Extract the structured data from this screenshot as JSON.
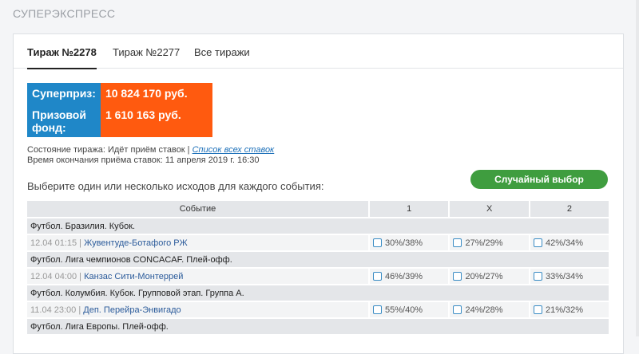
{
  "title": "СУПЕРЭКСПРЕСС",
  "tabs": [
    {
      "label": "Тираж №2278",
      "active": true
    },
    {
      "label": "Тираж №2277"
    },
    {
      "label": "Все тиражи"
    }
  ],
  "prize": {
    "super_label": "Суперприз:",
    "super_value": "10 824 170 руб.",
    "fund_label": "Призовой фонд:",
    "fund_value": "1 610 163 руб."
  },
  "status": {
    "state": "Состояние тиража: Идёт приём ставок |",
    "link": "Список всех ставок",
    "end": "Время окончания приёма ставок: 11 апреля 2019 г. 16:30"
  },
  "instruction": "Выберите один или несколько исходов для каждого события:",
  "random_button": "Случайный выбор",
  "colors": {
    "blue": "#1f87c8",
    "orange": "#ff5a0f",
    "green": "#3f9d3f"
  },
  "table": {
    "headers": [
      "Событие",
      "1",
      "X",
      "2"
    ],
    "events": [
      {
        "league": "Футбол. Бразилия. Кубок.",
        "time": "12.04 01:15 |",
        "teams": "Жувентуде-Ботафого РЖ",
        "odds": [
          "30%/38%",
          "27%/29%",
          "42%/34%"
        ]
      },
      {
        "league": "Футбол. Лига чемпионов CONCACAF. Плей-офф.",
        "time": "12.04 04:00 |",
        "teams": "Канзас Сити-Монтеррей",
        "odds": [
          "46%/39%",
          "20%/27%",
          "33%/34%"
        ]
      },
      {
        "league": "Футбол. Колумбия. Кубок. Групповой этап. Группа А.",
        "time": "11.04 23:00 |",
        "teams": "Деп. Перейра-Энвигадо",
        "odds": [
          "55%/40%",
          "24%/28%",
          "21%/32%"
        ]
      },
      {
        "league": "Футбол. Лига Европы. Плей-офф."
      }
    ]
  }
}
